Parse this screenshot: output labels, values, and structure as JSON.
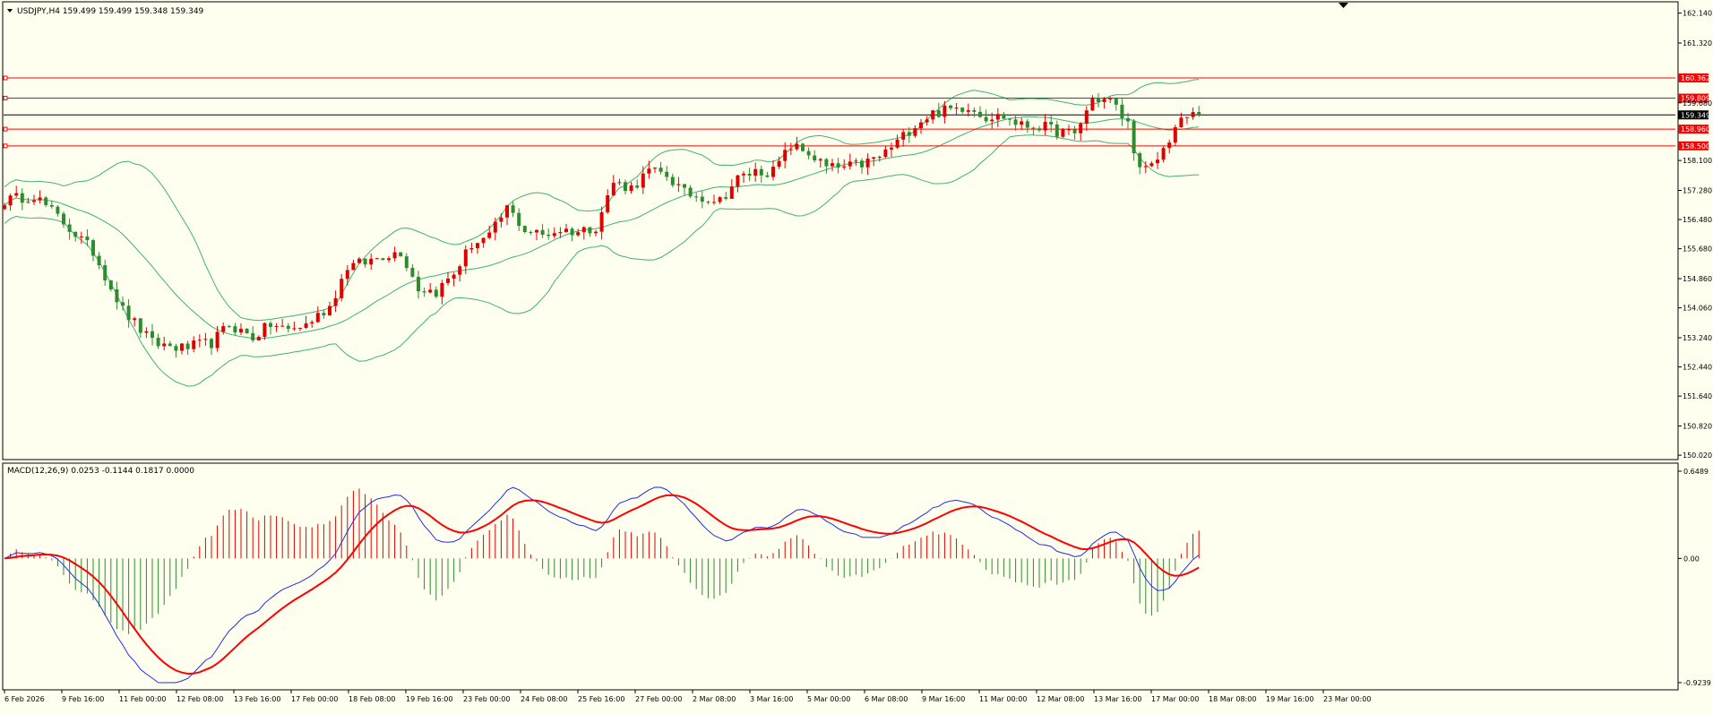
{
  "main_panel": {
    "header": "USDJPY,H4  159.499 159.499 159.348 159.349",
    "price_labels": [
      "162.140",
      "161.320",
      "159.680",
      "158.100",
      "157.280",
      "156.480",
      "155.680",
      "154.860",
      "154.060",
      "153.240",
      "152.440",
      "151.640",
      "150.820",
      "150.020"
    ]
  },
  "macd_panel": {
    "header": "MACD(12,26,9) 0.0253 -0.1144 0.1817 0.0000",
    "scale_labels": [
      "0.6489",
      "0.00",
      "-0.9239"
    ]
  },
  "time_labels": [
    "6 Feb 2026",
    "9 Feb 16:00",
    "11 Feb 00:00",
    "12 Feb 08:00",
    "13 Feb 16:00",
    "17 Feb 00:00",
    "18 Feb 08:00",
    "19 Feb 16:00",
    "23 Feb 00:00",
    "24 Feb 08:00",
    "25 Feb 16:00",
    "27 Feb 00:00",
    "2 Mar 08:00",
    "3 Mar 16:00",
    "5 Mar 00:00",
    "6 Mar 08:00",
    "9 Mar 16:00",
    "11 Mar 00:00",
    "12 Mar 08:00",
    "13 Mar 16:00",
    "17 Mar 00:00",
    "18 Mar 08:00",
    "19 Mar 16:00",
    "23 Mar 00:00"
  ],
  "colors": {
    "background": "#fffff0",
    "bull_candle": "#e00000",
    "bear_candle": "#2e8b2e",
    "bollinger": "#3cb371",
    "macd_line": "#1f2ee6",
    "signal_line": "#ff0000",
    "level_line": "#ff0000",
    "current_price": "#000000"
  },
  "chart_data": [
    {
      "type": "candlestick",
      "symbol": "USDJPY",
      "timeframe": "H4",
      "title": "USDJPY,H4",
      "ylim": [
        149.9,
        162.45
      ],
      "yticks": [
        162.14,
        161.32,
        159.68,
        158.1,
        157.28,
        156.48,
        155.68,
        154.86,
        154.06,
        153.24,
        152.44,
        151.64,
        150.82,
        150.02
      ],
      "current_price": 159.349,
      "current_price_label": "159.349",
      "horizontal_levels": [
        {
          "price": 160.362,
          "label": "160.362"
        },
        {
          "price": 159.809,
          "label": "159.809"
        },
        {
          "price": 158.96,
          "label": "158.960"
        },
        {
          "price": 158.5,
          "label": "158.500"
        }
      ],
      "series_close_waypoints": [
        [
          0,
          157.0
        ],
        [
          5,
          157.15
        ],
        [
          10,
          156.4
        ],
        [
          15,
          155.6
        ],
        [
          20,
          154.0
        ],
        [
          25,
          153.1
        ],
        [
          30,
          152.95
        ],
        [
          35,
          153.1
        ],
        [
          38,
          153.6
        ],
        [
          42,
          153.25
        ],
        [
          45,
          153.6
        ],
        [
          48,
          153.45
        ],
        [
          51,
          153.6
        ],
        [
          55,
          154.1
        ],
        [
          58,
          155.2
        ],
        [
          61,
          155.3
        ],
        [
          64,
          155.5
        ],
        [
          67,
          155.6
        ],
        [
          70,
          154.6
        ],
        [
          73,
          154.5
        ],
        [
          76,
          155.0
        ],
        [
          79,
          155.8
        ],
        [
          82,
          156.0
        ],
        [
          85,
          156.8
        ],
        [
          88,
          156.2
        ],
        [
          91,
          156.05
        ],
        [
          94,
          156.2
        ],
        [
          97,
          156.15
        ],
        [
          100,
          156.3
        ],
        [
          103,
          157.5
        ],
        [
          106,
          157.35
        ],
        [
          109,
          157.8
        ],
        [
          112,
          157.7
        ],
        [
          115,
          157.2
        ],
        [
          118,
          157.1
        ],
        [
          121,
          157.0
        ],
        [
          124,
          157.6
        ],
        [
          127,
          157.8
        ],
        [
          130,
          157.8
        ],
        [
          133,
          158.5
        ],
        [
          136,
          158.3
        ],
        [
          139,
          157.9
        ],
        [
          142,
          157.9
        ],
        [
          145,
          158.0
        ],
        [
          148,
          158.2
        ],
        [
          151,
          158.6
        ],
        [
          154,
          159.1
        ],
        [
          157,
          159.4
        ],
        [
          160,
          159.5
        ],
        [
          163,
          159.6
        ],
        [
          166,
          159.3
        ],
        [
          169,
          159.3
        ],
        [
          172,
          159.05
        ],
        [
          175,
          159.05
        ],
        [
          178,
          158.9
        ],
        [
          181,
          158.8
        ],
        [
          184,
          159.8
        ],
        [
          187,
          159.75
        ],
        [
          190,
          159.1
        ],
        [
          192,
          157.8
        ],
        [
          194,
          157.9
        ],
        [
          196,
          158.4
        ],
        [
          198,
          159.0
        ],
        [
          200,
          159.3
        ],
        [
          202,
          159.4
        ]
      ],
      "bollinger_bands": {
        "period": 20,
        "deviations": 2
      }
    },
    {
      "type": "macd",
      "title": "MACD(12,26,9)",
      "params": [
        12,
        26,
        9
      ],
      "values_label": "0.0253 -0.1144 0.1817 0.0000",
      "ylim": [
        -0.9239,
        0.6489
      ],
      "yticks": [
        0.6489,
        0.0,
        -0.9239
      ]
    }
  ]
}
